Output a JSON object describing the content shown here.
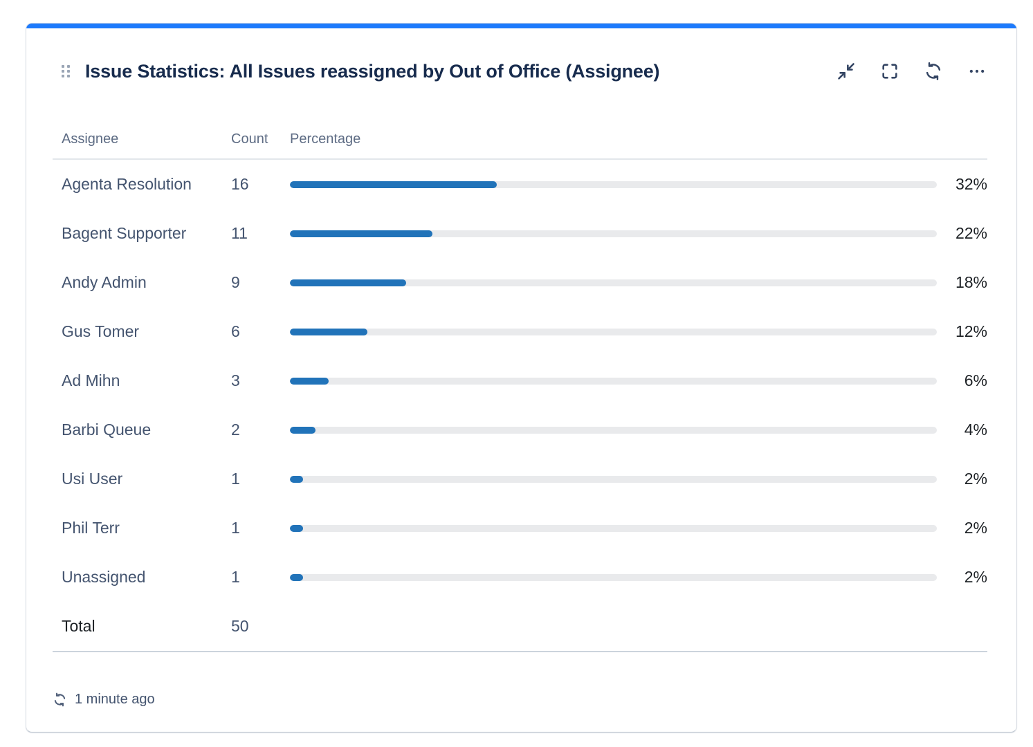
{
  "header": {
    "title": "Issue Statistics: All Issues reassigned by Out of Office (Assignee)",
    "drag_handle_icon": "drag-handle",
    "toolbar_icons": [
      "collapse-icon",
      "fullscreen-icon",
      "refresh-icon",
      "more-icon"
    ]
  },
  "table": {
    "columns": [
      "Assignee",
      "Count",
      "Percentage"
    ],
    "rows": [
      {
        "assignee": "Agenta Resolution",
        "count": "16",
        "percent_label": "32%",
        "percent_value": 32
      },
      {
        "assignee": "Bagent Supporter",
        "count": "11",
        "percent_label": "22%",
        "percent_value": 22
      },
      {
        "assignee": "Andy Admin",
        "count": "9",
        "percent_label": "18%",
        "percent_value": 18
      },
      {
        "assignee": "Gus Tomer",
        "count": "6",
        "percent_label": "12%",
        "percent_value": 12
      },
      {
        "assignee": "Ad Mihn",
        "count": "3",
        "percent_label": "6%",
        "percent_value": 6
      },
      {
        "assignee": "Barbi Queue",
        "count": "2",
        "percent_label": "4%",
        "percent_value": 4
      },
      {
        "assignee": "Usi User",
        "count": "1",
        "percent_label": "2%",
        "percent_value": 2
      },
      {
        "assignee": "Phil Terr",
        "count": "1",
        "percent_label": "2%",
        "percent_value": 2
      },
      {
        "assignee": "Unassigned",
        "count": "1",
        "percent_label": "2%",
        "percent_value": 2
      }
    ],
    "total_label": "Total",
    "total_count": "50"
  },
  "footer": {
    "refresh_icon": "refresh-icon",
    "last_updated": "1 minute ago"
  },
  "colors": {
    "accent": "#1D7AFC",
    "bar_fill": "#2173B9",
    "bar_track": "#E9EAEC"
  }
}
